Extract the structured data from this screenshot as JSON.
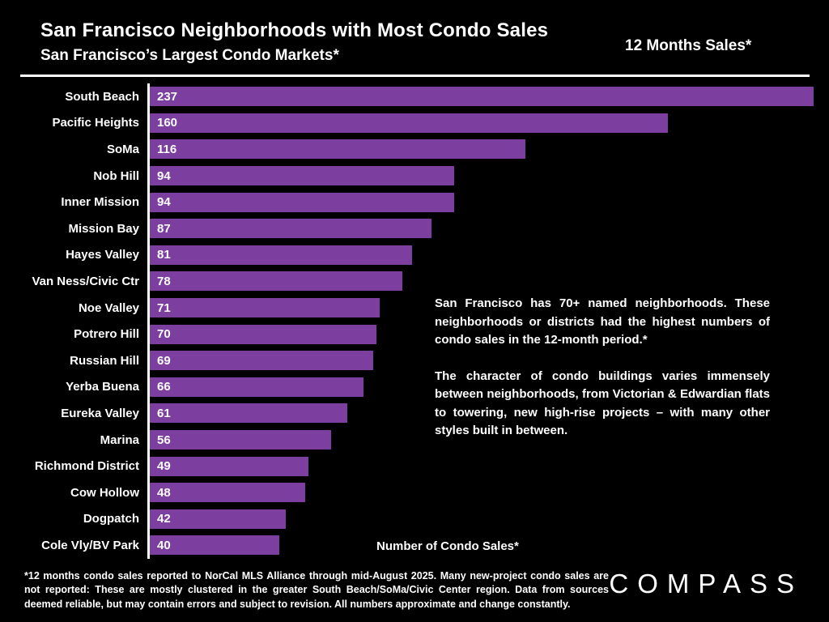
{
  "header": {
    "title": "San Francisco Neighborhoods with Most Condo Sales",
    "subtitle": "San Francisco’s Largest Condo Markets*",
    "right_label": "12 Months Sales*"
  },
  "chart_data": {
    "type": "bar",
    "orientation": "horizontal",
    "title": "San Francisco Neighborhoods with Most Condo Sales",
    "categories": [
      "South Beach",
      "Pacific Heights",
      "SoMa",
      "Nob Hill",
      "Inner Mission",
      "Mission Bay",
      "Hayes Valley",
      "Van Ness/Civic Ctr",
      "Noe Valley",
      "Potrero Hill",
      "Russian Hill",
      "Yerba Buena",
      "Eureka Valley",
      "Marina",
      "Richmond District",
      "Cow Hollow",
      "Dogpatch",
      "Cole Vly/BV Park"
    ],
    "values": [
      237,
      160,
      116,
      94,
      94,
      87,
      81,
      78,
      71,
      70,
      69,
      66,
      61,
      56,
      49,
      48,
      42,
      40
    ],
    "xlabel": "Number of Condo Sales*",
    "ylabel": "",
    "xlim": [
      0,
      205
    ],
    "grid": false,
    "legend": false,
    "data_labels": "inside-left"
  },
  "annotation": {
    "para1": "San Francisco has 70+ named neighborhoods. These neighborhoods or districts had the highest numbers of condo sales in the 12-month period.*",
    "para2": "The character of condo buildings varies immensely between neighborhoods, from Victorian & Edwardian flats to towering, new high-rise projects – with many other styles built in between."
  },
  "footnote": "*12 months condo sales reported to NorCal MLS Alliance through mid-August 2025. Many new-project condo sales are not reported:  These are mostly clustered in the greater South Beach/SoMa/Civic Center region. Data from sources deemed reliable, but may contain errors and subject to revision. All numbers approximate and change constantly.",
  "brand": {
    "logo_text": "COMPASS"
  },
  "colors": {
    "background": "#000000",
    "bar": "#7c3fa0",
    "text": "#ffffff",
    "axis": "#ffffff"
  }
}
